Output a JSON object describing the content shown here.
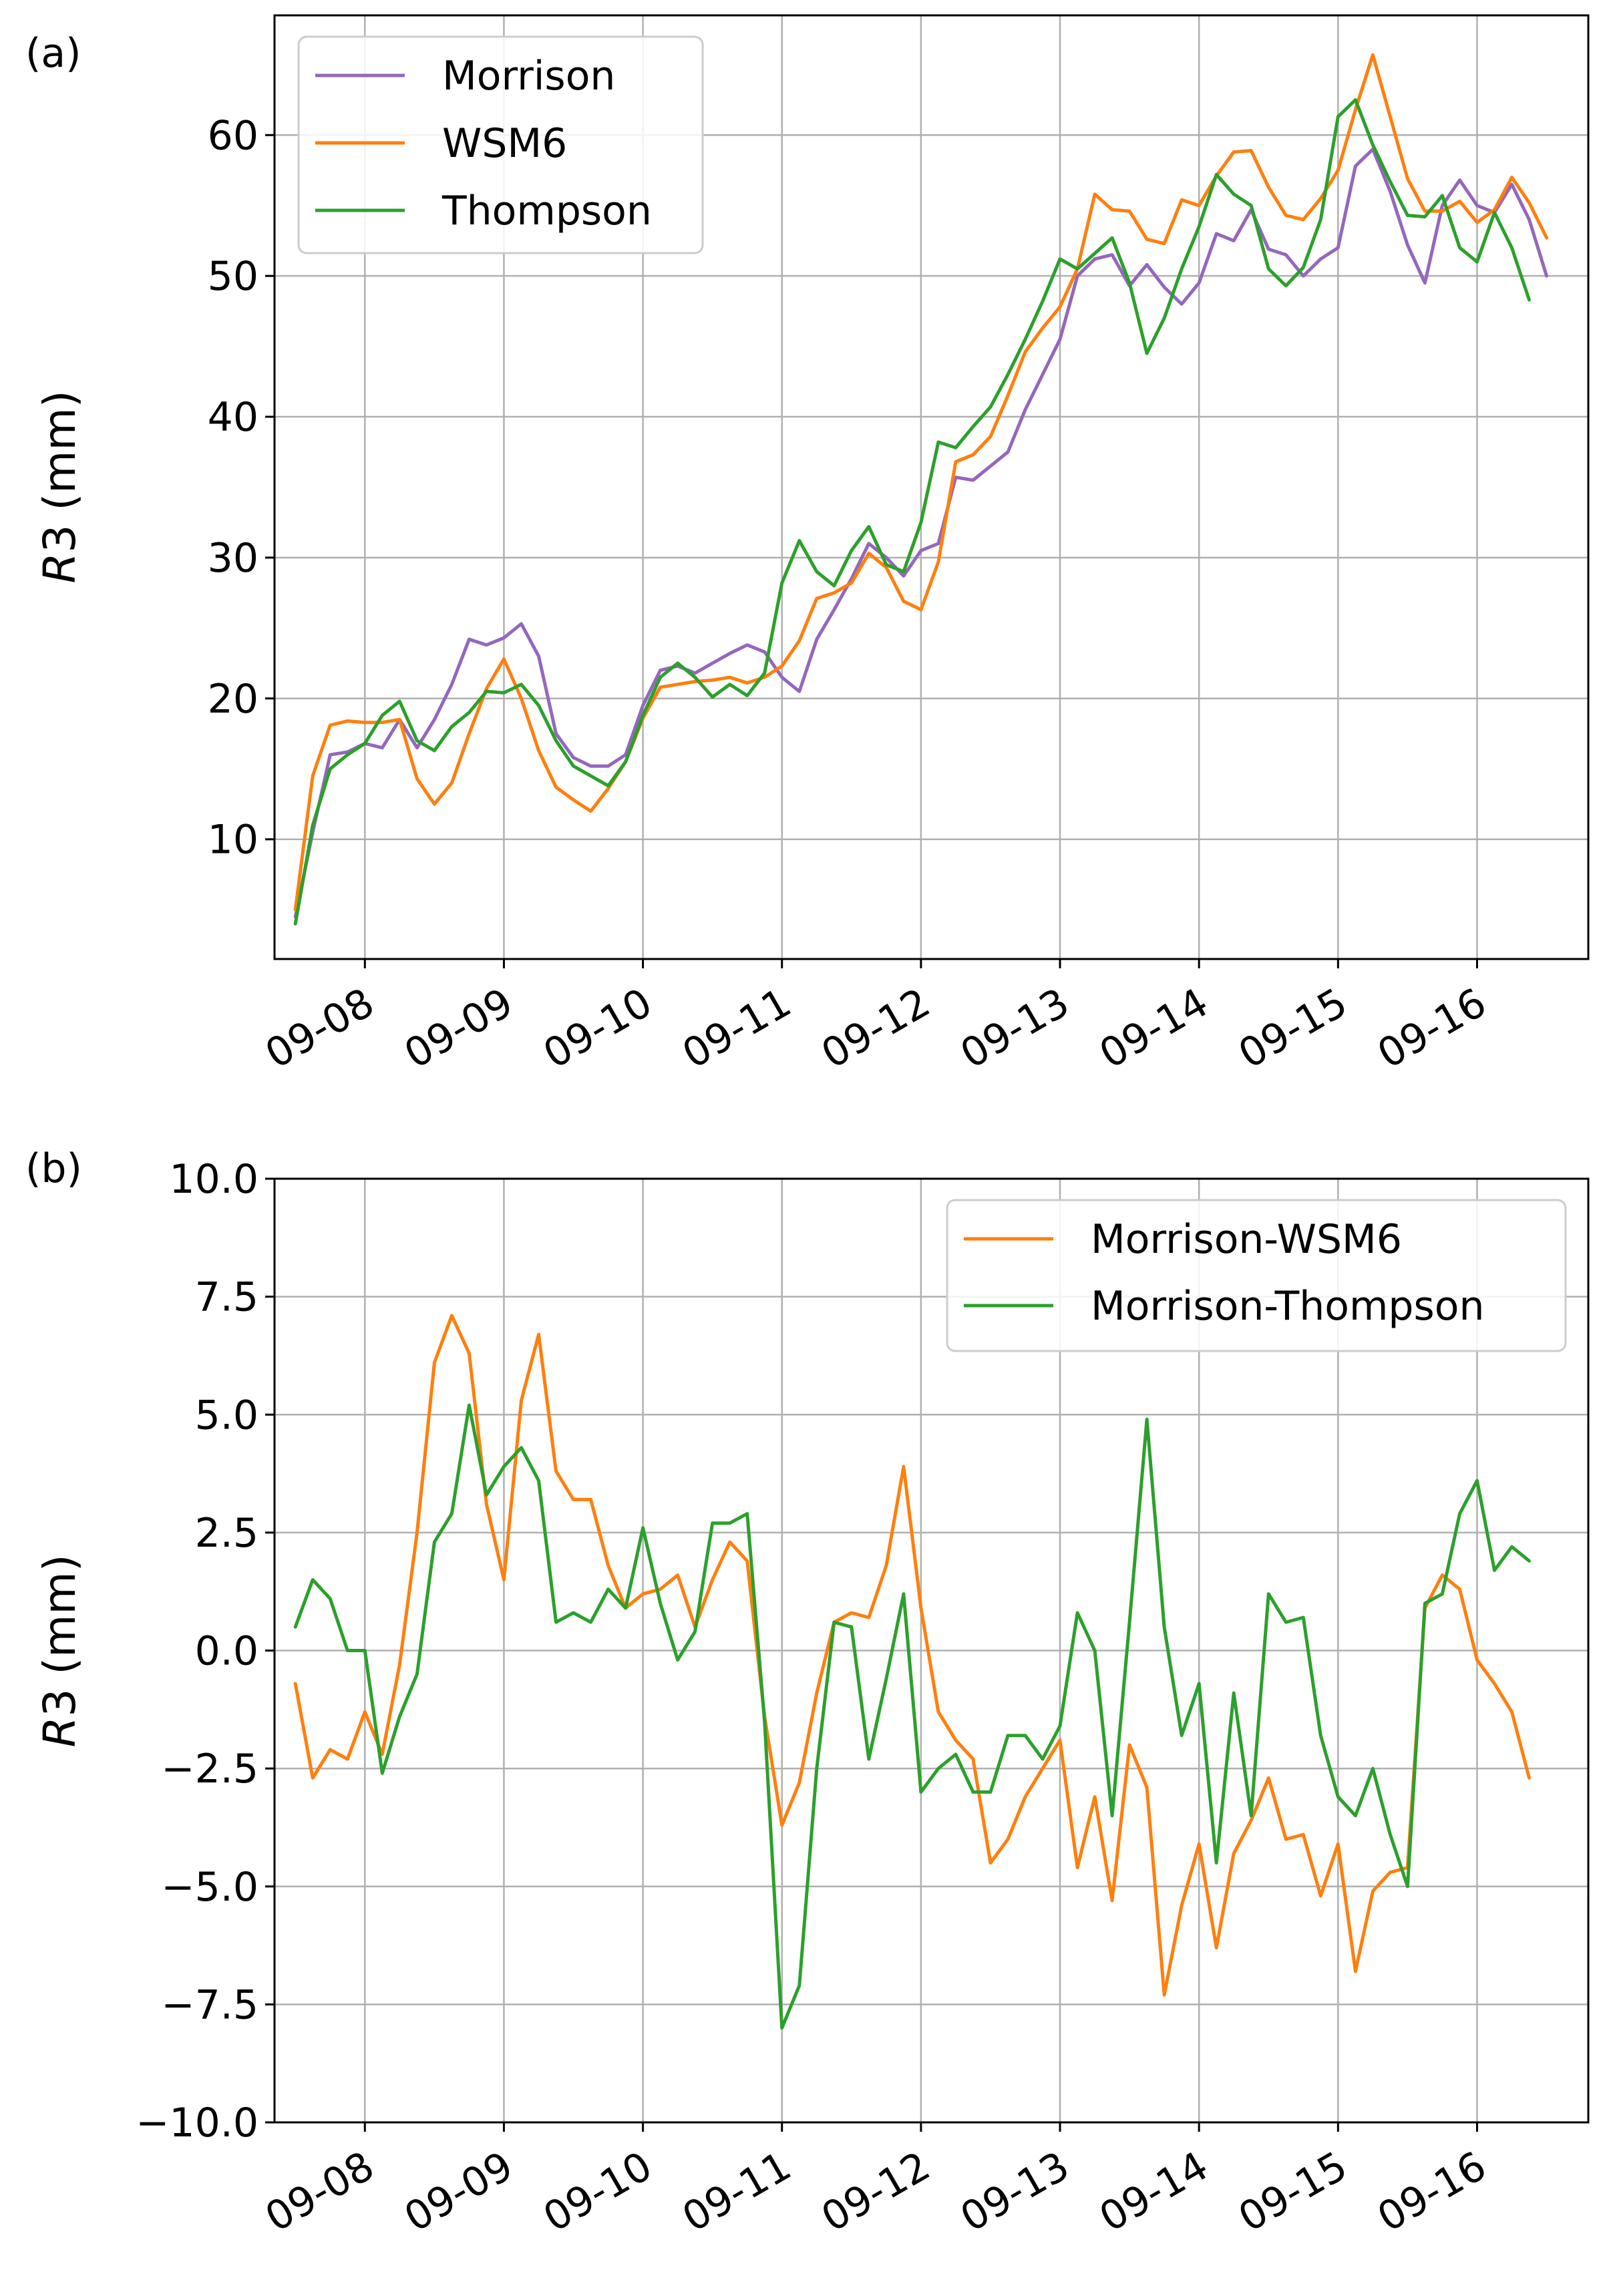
{
  "figure": {
    "panel_a": {
      "label": "(a)",
      "ylabel_var": "R",
      "ylabel_rest": "3 (mm)",
      "legend": [
        "Morrison",
        "WSM6",
        "Thompson"
      ]
    },
    "panel_b": {
      "label": "(b)",
      "ylabel_var": "R",
      "ylabel_rest": "3 (mm)",
      "legend": [
        "Morrison-WSM6",
        "Morrison-Thompson"
      ]
    }
  },
  "chart_data": [
    {
      "type": "line",
      "panel": "(a)",
      "title": "",
      "xlabel": "",
      "ylabel": "R3 (mm)",
      "xlim": [
        -0.65,
        8.8
      ],
      "ylim": [
        1.5,
        68.5
      ],
      "xticks": [
        0,
        1,
        2,
        3,
        4,
        5,
        6,
        7,
        8
      ],
      "xtick_labels": [
        "09-08",
        "09-09",
        "09-10",
        "09-11",
        "09-12",
        "09-13",
        "09-14",
        "09-15",
        "09-16"
      ],
      "yticks": [
        10,
        20,
        30,
        40,
        50,
        60
      ],
      "ytick_labels": [
        "10",
        "20",
        "30",
        "40",
        "50",
        "60"
      ],
      "grid": true,
      "legend_position": "top-left",
      "x_start": -0.5,
      "x_step": 0.125,
      "series": [
        {
          "name": "Morrison",
          "color": "#9467bd",
          "values": [
            4.5,
            10.5,
            16,
            16.2,
            16.8,
            16.5,
            18.5,
            16.5,
            18.5,
            21,
            24.2,
            23.8,
            24.3,
            25.3,
            23,
            17.5,
            15.8,
            15.2,
            15.2,
            16,
            19.5,
            22,
            22.3,
            21.8,
            22.5,
            23.2,
            23.8,
            23.3,
            21.5,
            20.5,
            24.2,
            26.3,
            28.5,
            31,
            30,
            28.7,
            30.5,
            31,
            35.7,
            35.5,
            36.5,
            37.5,
            40.5,
            43,
            45.5,
            50,
            51.2,
            51.5,
            49.3,
            50.8,
            49.2,
            48,
            49.5,
            53,
            52.5,
            54.7,
            51.9,
            51.5,
            50,
            51.2,
            52,
            57.8,
            59,
            56,
            52.2,
            49.5,
            55,
            56.8,
            55,
            54.5,
            56.5,
            54,
            50
          ]
        },
        {
          "name": "WSM6",
          "color": "#ff7f0e",
          "values": [
            5,
            14.5,
            18.1,
            18.4,
            18.3,
            18.3,
            18.5,
            14.3,
            12.5,
            14,
            17.5,
            20.7,
            22.8,
            20,
            16.3,
            13.7,
            12.8,
            12,
            13.6,
            15.5,
            18.6,
            20.8,
            21,
            21.2,
            21.3,
            21.5,
            21.1,
            21.5,
            22.3,
            24.1,
            27.1,
            27.5,
            28.2,
            30.3,
            29.3,
            26.9,
            26.3,
            29.7,
            36.8,
            37.3,
            38.6,
            41.5,
            44.6,
            46.3,
            47.8,
            50.5,
            55.8,
            54.7,
            54.6,
            52.6,
            52.3,
            55.4,
            55,
            57.1,
            58.8,
            58.9,
            56.3,
            54.3,
            54,
            55.5,
            57.5,
            61.8,
            65.7,
            61.3,
            56.9,
            54.6,
            54.6,
            55.3,
            53.8,
            54.7,
            57,
            55.2,
            52.7
          ]
        },
        {
          "name": "Thompson",
          "color": "#2ca02c",
          "values": [
            4,
            11,
            15,
            16,
            16.8,
            18.8,
            19.8,
            17,
            16.3,
            18,
            19,
            20.5,
            20.4,
            21,
            19.5,
            17,
            15.2,
            14.5,
            13.8,
            15.5,
            18.8,
            21.5,
            22.5,
            21.5,
            20.1,
            21,
            20.2,
            21.8,
            28.2,
            31.2,
            29,
            28,
            30.5,
            32.2,
            29.5,
            29,
            32.5,
            38.2,
            37.8,
            39.3,
            40.7,
            43,
            45.5,
            48.2,
            51.2,
            50.5,
            51.6,
            52.7,
            49.5,
            44.5,
            47,
            50.5,
            53.5,
            57.2,
            55.8,
            55,
            50.5,
            49.3,
            50.6,
            54,
            61.3,
            62.5,
            59.3,
            56.7,
            54.3,
            54.2,
            55.7,
            52,
            51,
            54.5,
            52,
            48.3
          ]
        }
      ]
    },
    {
      "type": "line",
      "panel": "(b)",
      "title": "",
      "xlabel": "",
      "ylabel": "R3 (mm)",
      "xlim": [
        -0.65,
        8.8
      ],
      "ylim": [
        -10,
        10
      ],
      "xticks": [
        0,
        1,
        2,
        3,
        4,
        5,
        6,
        7,
        8
      ],
      "xtick_labels": [
        "09-08",
        "09-09",
        "09-10",
        "09-11",
        "09-12",
        "09-13",
        "09-14",
        "09-15",
        "09-16"
      ],
      "yticks": [
        -10,
        -7.5,
        -5,
        -2.5,
        0,
        2.5,
        5,
        7.5,
        10
      ],
      "ytick_labels": [
        "−10.0",
        "−7.5",
        "−5.0",
        "−2.5",
        "0.0",
        "2.5",
        "5.0",
        "7.5",
        "10.0"
      ],
      "grid": true,
      "legend_position": "top-right",
      "x_start": -0.5,
      "x_step": 0.125,
      "series": [
        {
          "name": "Morrison-WSM6",
          "color": "#ff7f0e",
          "values": [
            -0.7,
            -2.7,
            -2.1,
            -2.3,
            -1.3,
            -2.2,
            -0.3,
            2.5,
            6.1,
            7.1,
            6.3,
            3.1,
            1.5,
            5.3,
            6.7,
            3.8,
            3.2,
            3.2,
            1.8,
            0.9,
            1.2,
            1.3,
            1.6,
            0.5,
            1.5,
            2.3,
            1.9,
            -1.4,
            -3.7,
            -2.8,
            -0.9,
            0.6,
            0.8,
            0.7,
            1.8,
            3.9,
            0.9,
            -1.3,
            -1.9,
            -2.3,
            -4.5,
            -4,
            -3.1,
            -2.5,
            -1.9,
            -4.6,
            -3.1,
            -5.3,
            -2,
            -2.9,
            -7.3,
            -5.4,
            -4.1,
            -6.3,
            -4.3,
            -3.6,
            -2.7,
            -4,
            -3.9,
            -5.2,
            -4.1,
            -6.8,
            -5.1,
            -4.7,
            -4.6,
            0.9,
            1.6,
            1.3,
            -0.2,
            -0.7,
            -1.3,
            -2.7
          ]
        },
        {
          "name": "Morrison-Thompson",
          "color": "#2ca02c",
          "values": [
            0.5,
            1.5,
            1.1,
            0,
            0,
            -2.6,
            -1.4,
            -0.5,
            2.3,
            2.9,
            5.2,
            3.3,
            3.9,
            4.3,
            3.6,
            0.6,
            0.8,
            0.6,
            1.3,
            0.9,
            2.6,
            1,
            -0.2,
            0.4,
            2.7,
            2.7,
            2.9,
            -1.5,
            -8,
            -7.1,
            -2.5,
            0.6,
            0.5,
            -2.3,
            -0.6,
            1.2,
            -3,
            -2.5,
            -2.2,
            -3,
            -3,
            -1.8,
            -1.8,
            -2.3,
            -1.6,
            0.8,
            0,
            -3.5,
            0.6,
            4.9,
            0.5,
            -1.8,
            -0.7,
            -4.5,
            -0.9,
            -3.5,
            1.2,
            0.6,
            0.7,
            -1.8,
            -3.1,
            -3.5,
            -2.5,
            -3.9,
            -5,
            1,
            1.2,
            2.9,
            3.6,
            1.7,
            2.2,
            1.9
          ]
        }
      ]
    }
  ]
}
